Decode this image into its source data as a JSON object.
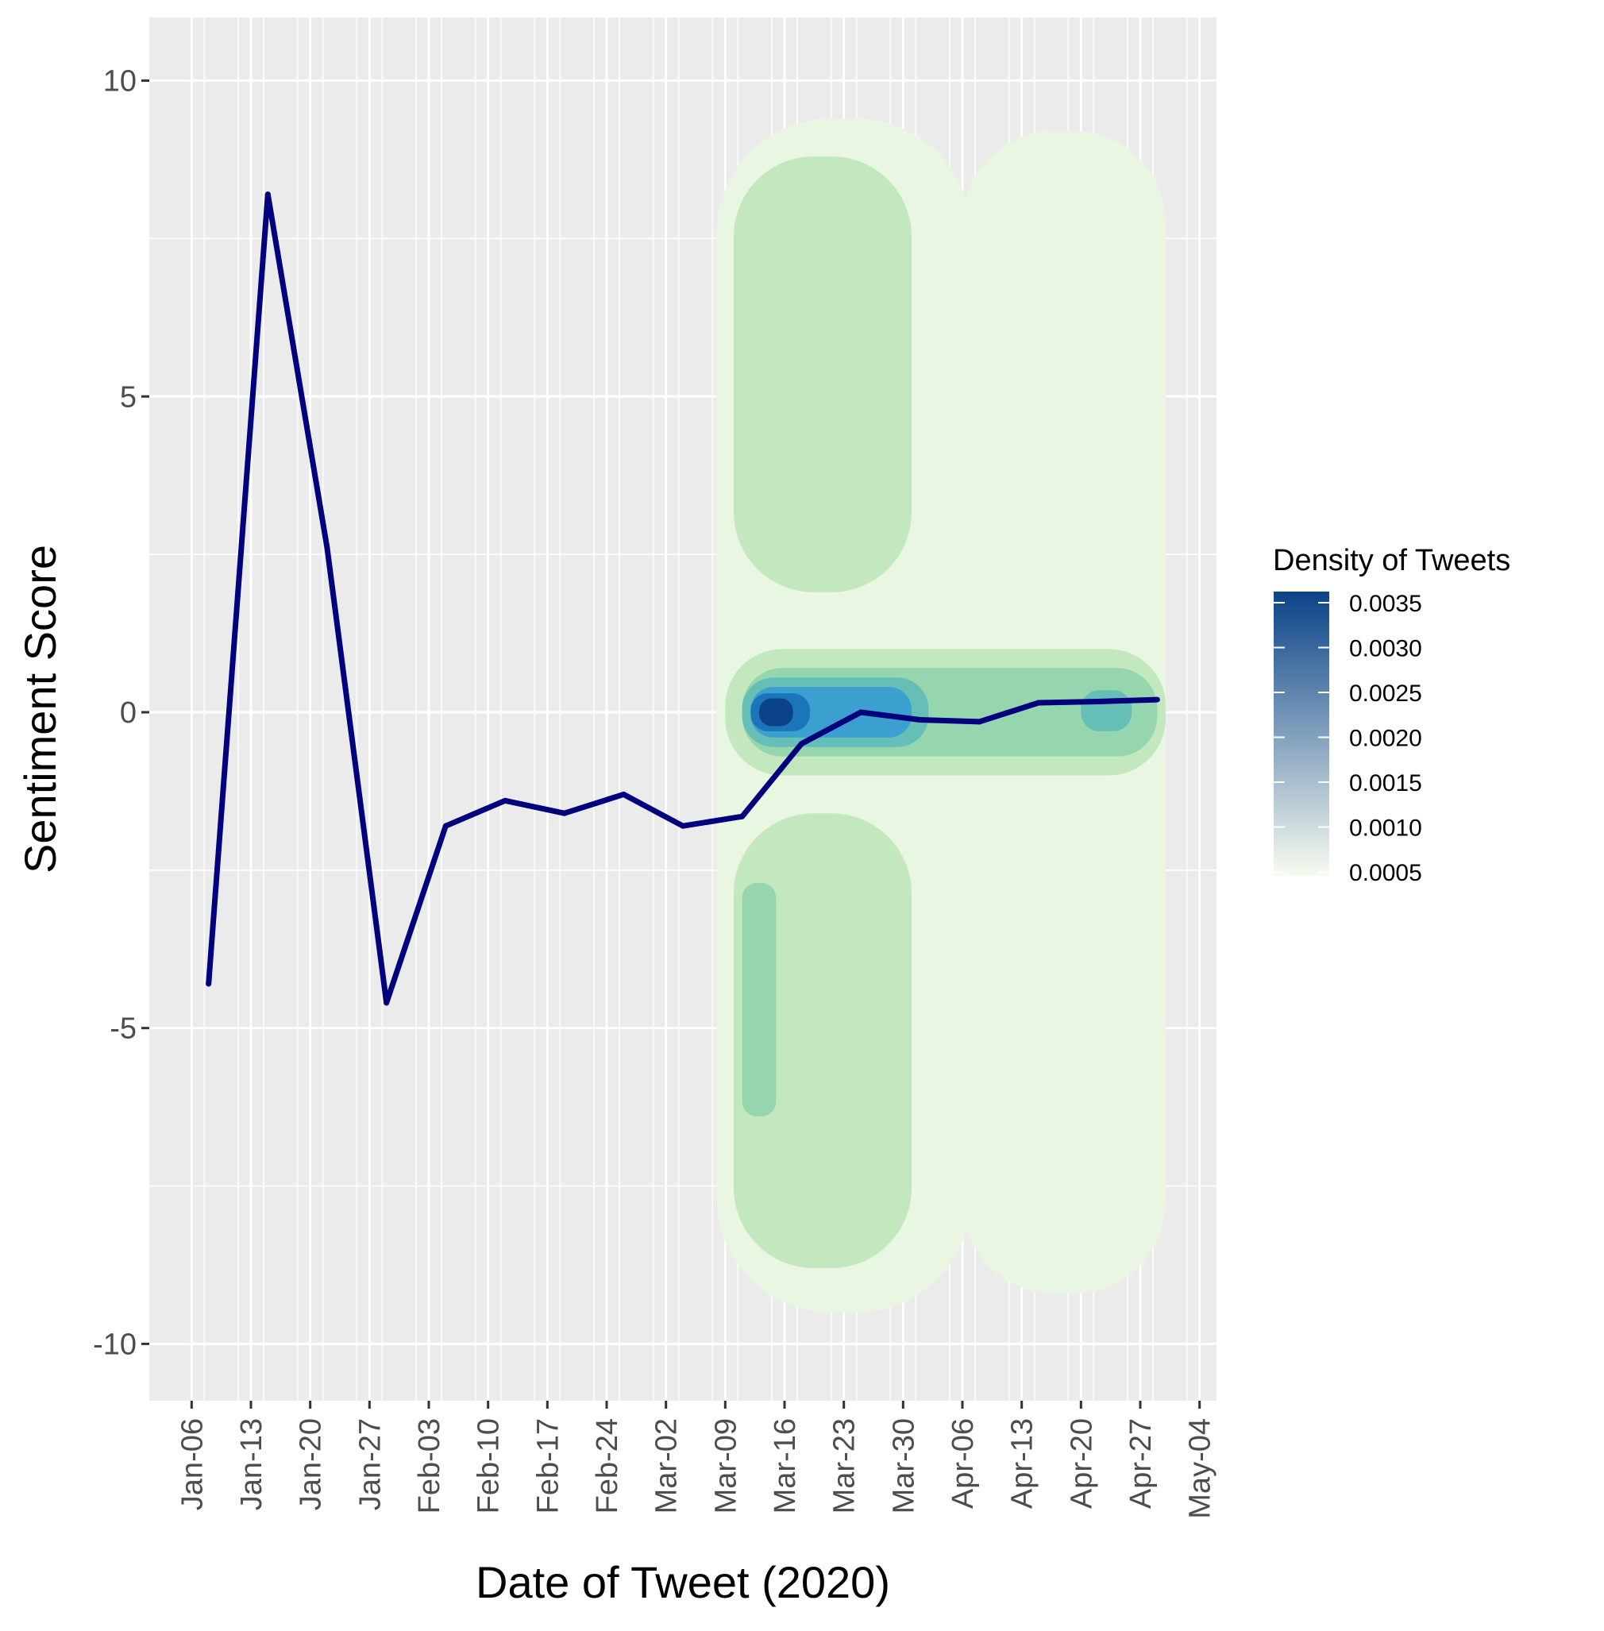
{
  "chart_data": {
    "type": "line",
    "title": "",
    "xlabel": "Date of Tweet (2020)",
    "ylabel": "Sentiment Score",
    "x_ticks": [
      "Jan-06",
      "Jan-13",
      "Jan-20",
      "Jan-27",
      "Feb-03",
      "Feb-10",
      "Feb-17",
      "Feb-24",
      "Mar-02",
      "Mar-09",
      "Mar-16",
      "Mar-23",
      "Mar-30",
      "Apr-06",
      "Apr-13",
      "Apr-20",
      "Apr-27",
      "May-04"
    ],
    "xlim": [
      "2020-01-01",
      "2020-05-06"
    ],
    "y_ticks": [
      "10",
      "5",
      "0",
      "-5",
      "-10"
    ],
    "ylim": [
      -10.9,
      11
    ],
    "grid": true,
    "series": [
      {
        "color": "#00007F",
        "points": [
          {
            "x": "2020-01-08",
            "y": -4.3
          },
          {
            "x": "2020-01-15",
            "y": 8.2
          },
          {
            "x": "2020-01-22",
            "y": 2.6
          },
          {
            "x": "2020-01-29",
            "y": -4.6
          },
          {
            "x": "2020-02-05",
            "y": -1.8
          },
          {
            "x": "2020-02-12",
            "y": -1.4
          },
          {
            "x": "2020-02-19",
            "y": -1.6
          },
          {
            "x": "2020-02-26",
            "y": -1.3
          },
          {
            "x": "2020-03-04",
            "y": -1.8
          },
          {
            "x": "2020-03-11",
            "y": -1.65
          },
          {
            "x": "2020-03-18",
            "y": -0.5
          },
          {
            "x": "2020-03-25",
            "y": 0.0
          },
          {
            "x": "2020-04-01",
            "y": -0.12
          },
          {
            "x": "2020-04-08",
            "y": -0.15
          },
          {
            "x": "2020-04-15",
            "y": 0.15
          },
          {
            "x": "2020-04-22",
            "y": 0.17
          },
          {
            "x": "2020-04-29",
            "y": 0.2
          }
        ]
      }
    ],
    "density_layer": {
      "type": "filled-contour",
      "levels": [
        0.0005,
        0.001,
        0.0015,
        0.002,
        0.0025,
        0.003,
        0.0035
      ],
      "colors": [
        "#E9F6E2",
        "#C3E8BE",
        "#95D6AF",
        "#65BFB6",
        "#3B9FCF",
        "#1C75B8",
        "#0B4389"
      ],
      "regions": [
        {
          "level": 0.0005,
          "x_range": [
            "2020-03-08",
            "2020-04-07"
          ],
          "y_range": [
            -9.5,
            9.4
          ]
        },
        {
          "level": 0.0005,
          "x_range": [
            "2020-04-06",
            "2020-04-30"
          ],
          "y_range": [
            -9.2,
            9.2
          ]
        },
        {
          "level": 0.001,
          "x_range": [
            "2020-03-10",
            "2020-03-31"
          ],
          "y_range": [
            1.9,
            8.8
          ]
        },
        {
          "level": 0.001,
          "x_range": [
            "2020-03-10",
            "2020-03-31"
          ],
          "y_range": [
            -8.8,
            -1.6
          ]
        },
        {
          "level": 0.001,
          "x_range": [
            "2020-03-09",
            "2020-04-30"
          ],
          "y_range": [
            -1.0,
            1.0
          ]
        },
        {
          "level": 0.0015,
          "x_range": [
            "2020-03-11",
            "2020-04-29"
          ],
          "y_range": [
            -0.7,
            0.7
          ]
        },
        {
          "level": 0.0015,
          "x_range": [
            "2020-03-11",
            "2020-03-15"
          ],
          "y_range": [
            -6.4,
            -2.7
          ]
        },
        {
          "level": 0.002,
          "x_range": [
            "2020-03-11",
            "2020-04-02"
          ],
          "y_range": [
            -0.55,
            0.55
          ]
        },
        {
          "level": 0.002,
          "x_range": [
            "2020-04-20",
            "2020-04-26"
          ],
          "y_range": [
            -0.3,
            0.35
          ]
        },
        {
          "level": 0.0025,
          "x_range": [
            "2020-03-12",
            "2020-03-31"
          ],
          "y_range": [
            -0.4,
            0.4
          ]
        },
        {
          "level": 0.003,
          "x_range": [
            "2020-03-12",
            "2020-03-19"
          ],
          "y_range": [
            -0.3,
            0.3
          ]
        },
        {
          "level": 0.0035,
          "x_range": [
            "2020-03-13",
            "2020-03-17"
          ],
          "y_range": [
            -0.22,
            0.22
          ]
        }
      ]
    },
    "legend": {
      "title": "Density of Tweets",
      "labels": [
        "0.0035",
        "0.0030",
        "0.0025",
        "0.0020",
        "0.0015",
        "0.0010",
        "0.0005"
      ],
      "placement": "right",
      "gradient": [
        "#0B4389",
        "#1C75B8",
        "#3B9FCF",
        "#65BFB6",
        "#95D6AF",
        "#C3E8BE",
        "#E9F6E2",
        "#F7FCF0"
      ]
    }
  }
}
